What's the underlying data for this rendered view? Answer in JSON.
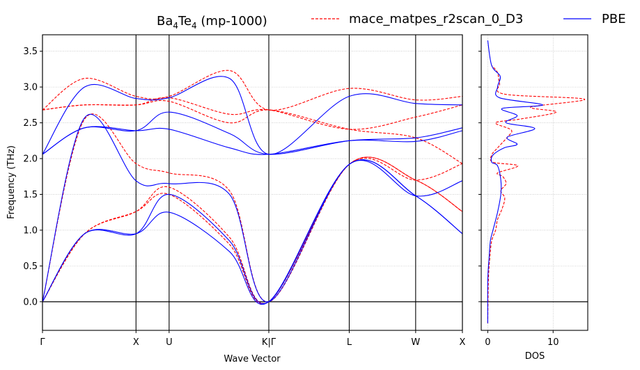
{
  "chart_data": [
    {
      "type": "line",
      "title_main": "Ba",
      "title_sub1": "4",
      "title_mid": "Te",
      "title_sub2": "4",
      "title_rest": " (mp-1000)",
      "xlabel": "Wave Vector",
      "ylabel": "Frequency (THz)",
      "ylim": [
        -0.4,
        3.73
      ],
      "yticks": [
        "0.0",
        "0.5",
        "1.0",
        "1.5",
        "2.0",
        "2.5",
        "3.0",
        "3.5"
      ],
      "xticks": [
        {
          "label": "Γ",
          "pos": 0.0
        },
        {
          "label": "X",
          "pos": 1.0
        },
        {
          "label": "U",
          "pos": 1.354
        },
        {
          "label": "K|Γ",
          "pos": 2.42
        },
        {
          "label": "L",
          "pos": 3.28
        },
        {
          "label": "W",
          "pos": 3.99
        },
        {
          "label": "X",
          "pos": 4.49
        }
      ],
      "grid": true,
      "legend_placement": "top-right-outside",
      "series": [
        {
          "name": "mace_matpes_r2scan_0_D3",
          "color": "#ff0000",
          "dash": true,
          "x": [
            0,
            0.45,
            1.0,
            1.354,
            2.0,
            2.42,
            3.28,
            3.99,
            4.49
          ],
          "bands": [
            [
              0.0,
              0.95,
              1.26,
              1.5,
              0.8,
              0.0,
              1.92,
              1.7,
              1.26
            ],
            [
              0.0,
              0.95,
              1.26,
              1.6,
              0.9,
              0.0,
              1.92,
              1.7,
              1.26
            ],
            [
              0.0,
              2.55,
              1.93,
              1.8,
              1.55,
              0.0,
              1.92,
              1.7,
              1.93
            ],
            [
              2.68,
              2.75,
              2.75,
              2.8,
              2.5,
              2.68,
              2.41,
              2.29,
              1.93
            ],
            [
              2.68,
              2.75,
              2.75,
              2.85,
              2.62,
              2.68,
              2.41,
              2.58,
              2.75
            ],
            [
              2.68,
              3.12,
              2.87,
              2.87,
              3.23,
              2.68,
              2.98,
              2.82,
              2.87
            ]
          ]
        },
        {
          "name": "PBE",
          "color": "#0000ff",
          "dash": false,
          "x": [
            0,
            0.45,
            1.0,
            1.354,
            2.0,
            2.42,
            3.28,
            3.99,
            4.49
          ],
          "bands": [
            [
              0.0,
              0.95,
              0.95,
              1.25,
              0.7,
              0.0,
              1.92,
              1.48,
              0.95
            ],
            [
              0.0,
              0.95,
              0.95,
              1.5,
              0.85,
              0.0,
              1.92,
              1.48,
              0.95
            ],
            [
              0.0,
              2.57,
              1.69,
              1.65,
              1.5,
              0.0,
              1.92,
              1.48,
              1.69
            ],
            [
              2.06,
              2.43,
              2.39,
              2.41,
              2.15,
              2.06,
              2.25,
              2.24,
              2.39
            ],
            [
              2.06,
              2.43,
              2.39,
              2.65,
              2.35,
              2.06,
              2.25,
              2.29,
              2.43
            ],
            [
              2.06,
              3.0,
              2.84,
              2.85,
              3.12,
              2.06,
              2.87,
              2.77,
              2.75
            ]
          ]
        }
      ]
    },
    {
      "type": "line",
      "xlabel": "DOS",
      "xticks": [
        "0",
        "10"
      ],
      "xlim": [
        -1.0,
        15.3
      ],
      "ylim": [
        -0.4,
        3.73
      ],
      "grid": true,
      "series": [
        {
          "name": "mace_matpes_r2scan_0_D3",
          "color": "#ff0000",
          "dash": true,
          "points": [
            [
              0.0,
              -0.3
            ],
            [
              0.1,
              0.3
            ],
            [
              0.3,
              0.6
            ],
            [
              0.6,
              0.85
            ],
            [
              1.2,
              1.0
            ],
            [
              1.5,
              1.15
            ],
            [
              2.2,
              1.3
            ],
            [
              2.6,
              1.45
            ],
            [
              2.0,
              1.55
            ],
            [
              2.8,
              1.65
            ],
            [
              2.3,
              1.75
            ],
            [
              1.5,
              1.8
            ],
            [
              4.6,
              1.9
            ],
            [
              0.8,
              1.95
            ],
            [
              0.6,
              2.05
            ],
            [
              1.5,
              2.15
            ],
            [
              3.0,
              2.3
            ],
            [
              3.6,
              2.4
            ],
            [
              1.2,
              2.5
            ],
            [
              4.8,
              2.55
            ],
            [
              10.5,
              2.65
            ],
            [
              6.6,
              2.72
            ],
            [
              14.8,
              2.83
            ],
            [
              2.6,
              2.9
            ],
            [
              1.8,
              3.05
            ],
            [
              1.5,
              3.2
            ],
            [
              0.6,
              3.3
            ]
          ]
        },
        {
          "name": "PBE",
          "color": "#0000ff",
          "dash": false,
          "points": [
            [
              0.0,
              -0.3
            ],
            [
              0.0,
              0.3
            ],
            [
              0.2,
              0.6
            ],
            [
              0.4,
              0.85
            ],
            [
              0.8,
              1.0
            ],
            [
              1.5,
              1.25
            ],
            [
              2.0,
              1.5
            ],
            [
              2.0,
              1.7
            ],
            [
              1.5,
              1.9
            ],
            [
              0.6,
              1.95
            ],
            [
              0.8,
              2.05
            ],
            [
              2.5,
              2.15
            ],
            [
              4.5,
              2.2
            ],
            [
              3.0,
              2.3
            ],
            [
              7.2,
              2.42
            ],
            [
              2.8,
              2.5
            ],
            [
              4.5,
              2.6
            ],
            [
              2.2,
              2.7
            ],
            [
              8.4,
              2.75
            ],
            [
              1.8,
              2.85
            ],
            [
              1.5,
              3.0
            ],
            [
              1.9,
              3.15
            ],
            [
              0.6,
              3.3
            ],
            [
              0.0,
              3.65
            ]
          ]
        }
      ]
    }
  ]
}
